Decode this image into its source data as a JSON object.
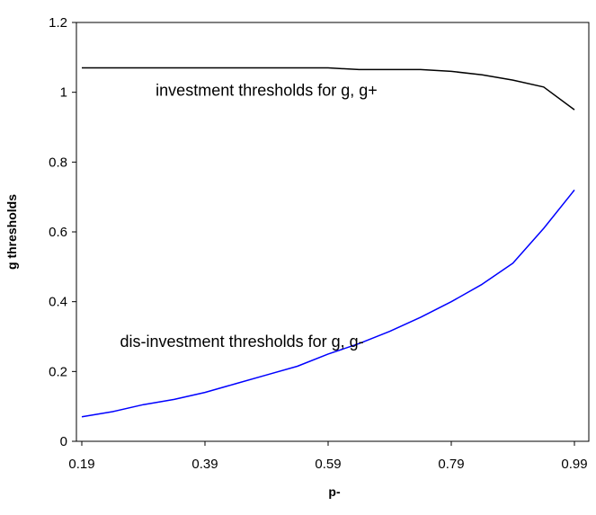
{
  "chart_data": {
    "type": "line",
    "title": "",
    "xlabel": "p-",
    "ylabel": "g thresholds",
    "xlim": [
      0.19,
      0.99
    ],
    "ylim": [
      0,
      1.2
    ],
    "x_ticks": [
      0.19,
      0.39,
      0.59,
      0.79,
      0.99
    ],
    "x_tick_labels": [
      "0.19",
      "0.39",
      "0.59",
      "0.79",
      "0.99"
    ],
    "y_ticks": [
      0,
      0.2,
      0.4,
      0.6,
      0.8,
      1,
      1.2
    ],
    "y_tick_labels": [
      "0",
      "0.2",
      "0.4",
      "0.6",
      "0.8",
      "1",
      "1.2"
    ],
    "grid": false,
    "legend": "none",
    "series": [
      {
        "color": "#000000",
        "x": [
          0.19,
          0.24,
          0.29,
          0.34,
          0.39,
          0.44,
          0.49,
          0.54,
          0.59,
          0.64,
          0.69,
          0.74,
          0.79,
          0.84,
          0.89,
          0.94,
          0.99
        ],
        "y": [
          1.07,
          1.07,
          1.07,
          1.07,
          1.07,
          1.07,
          1.07,
          1.07,
          1.07,
          1.065,
          1.065,
          1.065,
          1.06,
          1.05,
          1.035,
          1.015,
          0.95
        ]
      },
      {
        "color": "#0000ff",
        "x": [
          0.19,
          0.24,
          0.29,
          0.34,
          0.39,
          0.44,
          0.49,
          0.54,
          0.59,
          0.64,
          0.69,
          0.74,
          0.79,
          0.84,
          0.89,
          0.94,
          0.99
        ],
        "y": [
          0.07,
          0.085,
          0.105,
          0.12,
          0.14,
          0.165,
          0.19,
          0.215,
          0.25,
          0.28,
          0.315,
          0.355,
          0.4,
          0.45,
          0.51,
          0.61,
          0.72
        ]
      }
    ],
    "annotations": [
      {
        "text": "investment thresholds for g, g+",
        "x": 0.49,
        "y": 0.99
      },
      {
        "text": "dis-investment thresholds for g, g-",
        "x": 0.45,
        "y": 0.27
      }
    ]
  }
}
